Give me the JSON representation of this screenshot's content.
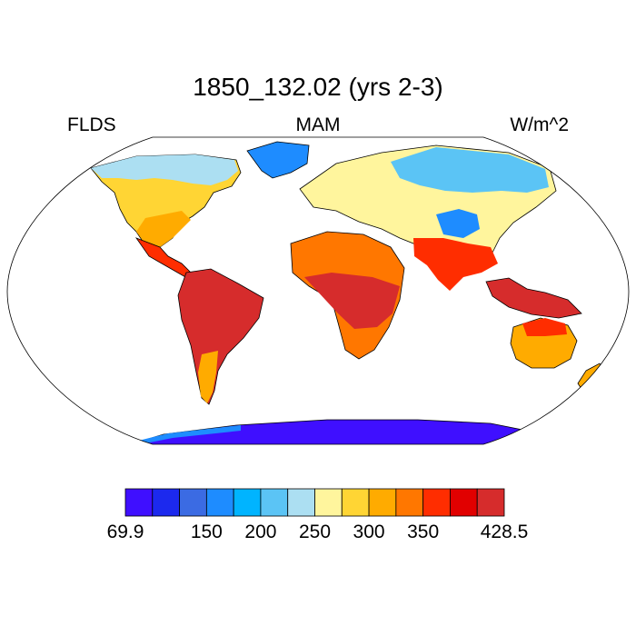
{
  "title": "1850_132.02 (yrs 2-3)",
  "left_label": "FLDS",
  "center_label": "MAM",
  "right_label": "W/m^2",
  "colorbar": {
    "colors": [
      "#3f0fff",
      "#1c29ee",
      "#3b6be3",
      "#1e8cff",
      "#00b4ff",
      "#5bc4f5",
      "#acdff2",
      "#fff59d",
      "#ffd534",
      "#ffab00",
      "#ff7700",
      "#ff2d00",
      "#e10000",
      "#d62c2c"
    ],
    "tick_labels": [
      "69.9",
      "150",
      "200",
      "250",
      "300",
      "350",
      "428.5"
    ]
  },
  "colors": {
    "ocean": "#ffffff",
    "outline": "#000000"
  }
}
